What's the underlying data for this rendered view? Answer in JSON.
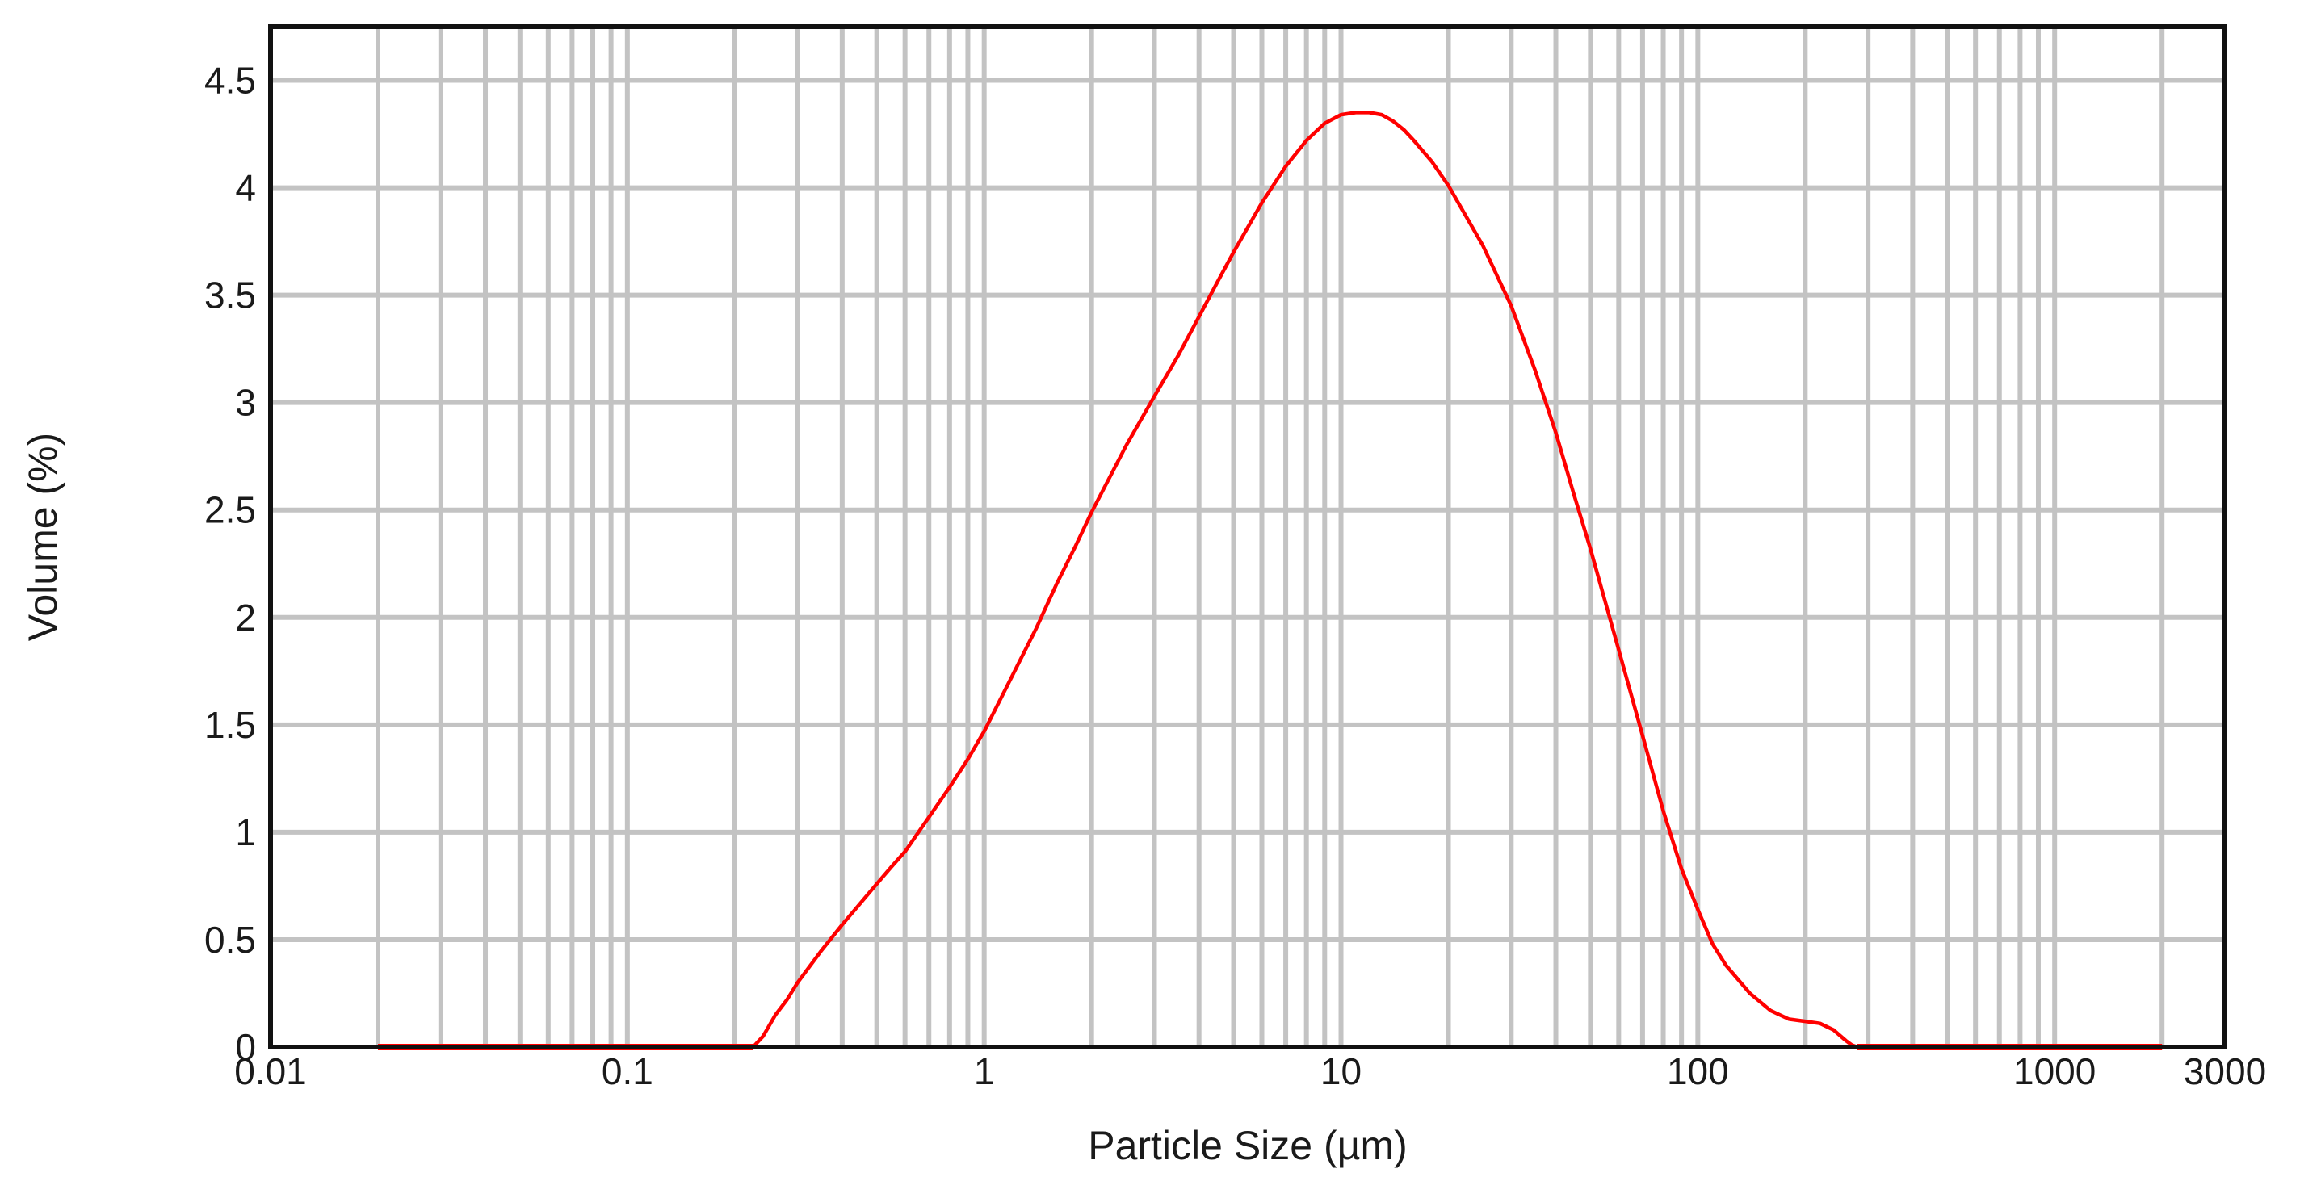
{
  "chart_data": {
    "type": "line",
    "title": "",
    "xlabel": "Particle Size (µm)",
    "ylabel": "Volume (%)",
    "x_scale": "log",
    "xlim": [
      0.01,
      3000
    ],
    "ylim": [
      0,
      4.75
    ],
    "x_ticks": [
      {
        "value": 0.01,
        "label": "0.01"
      },
      {
        "value": 0.1,
        "label": "0.1"
      },
      {
        "value": 1,
        "label": "1"
      },
      {
        "value": 10,
        "label": "10"
      },
      {
        "value": 100,
        "label": "100"
      },
      {
        "value": 1000,
        "label": "1000"
      },
      {
        "value": 3000,
        "label": "3000"
      }
    ],
    "y_ticks": [
      {
        "value": 0,
        "label": "0"
      },
      {
        "value": 0.5,
        "label": "0.5"
      },
      {
        "value": 1,
        "label": "1"
      },
      {
        "value": 1.5,
        "label": "1.5"
      },
      {
        "value": 2,
        "label": "2"
      },
      {
        "value": 2.5,
        "label": "2.5"
      },
      {
        "value": 3,
        "label": "3"
      },
      {
        "value": 3.5,
        "label": "3.5"
      },
      {
        "value": 4,
        "label": "4"
      },
      {
        "value": 4.5,
        "label": "4.5"
      }
    ],
    "x_gridlines": [
      0.02,
      0.03,
      0.04,
      0.05,
      0.06,
      0.07,
      0.08,
      0.09,
      0.1,
      0.2,
      0.3,
      0.4,
      0.5,
      0.6,
      0.7,
      0.8,
      0.9,
      1,
      2,
      3,
      4,
      5,
      6,
      7,
      8,
      9,
      10,
      20,
      30,
      40,
      50,
      60,
      70,
      80,
      90,
      100,
      200,
      300,
      400,
      500,
      600,
      700,
      800,
      900,
      1000,
      2000
    ],
    "grid": true,
    "legend": "none",
    "series_color": "#ff0000",
    "series": [
      {
        "x": [
          0.02,
          0.05,
          0.1,
          0.15,
          0.2,
          0.225,
          0.24,
          0.26,
          0.28,
          0.3,
          0.35,
          0.4,
          0.45,
          0.5,
          0.55,
          0.6,
          0.7,
          0.8,
          0.9,
          1,
          1.2,
          1.4,
          1.6,
          1.8,
          2,
          2.5,
          3,
          3.5,
          4,
          4.5,
          5,
          6,
          7,
          8,
          9,
          10,
          11,
          12,
          13,
          14,
          15,
          16,
          18,
          20,
          25,
          30,
          35,
          40,
          45,
          50,
          60,
          70,
          80,
          90,
          100,
          110,
          120,
          140,
          160,
          180,
          200,
          220,
          240,
          260,
          270,
          280,
          300,
          500,
          1000,
          2000
        ],
        "y": [
          0,
          0,
          0,
          0,
          0,
          0,
          0.05,
          0.15,
          0.22,
          0.3,
          0.45,
          0.57,
          0.67,
          0.76,
          0.84,
          0.91,
          1.07,
          1.21,
          1.34,
          1.47,
          1.73,
          1.95,
          2.16,
          2.33,
          2.49,
          2.8,
          3.03,
          3.22,
          3.4,
          3.56,
          3.7,
          3.93,
          4.1,
          4.22,
          4.3,
          4.34,
          4.35,
          4.35,
          4.34,
          4.31,
          4.27,
          4.22,
          4.12,
          4.01,
          3.73,
          3.45,
          3.15,
          2.86,
          2.57,
          2.32,
          1.85,
          1.45,
          1.1,
          0.83,
          0.64,
          0.48,
          0.38,
          0.25,
          0.17,
          0.13,
          0.12,
          0.11,
          0.08,
          0.03,
          0.01,
          0,
          0,
          0,
          0,
          0
        ]
      }
    ]
  }
}
